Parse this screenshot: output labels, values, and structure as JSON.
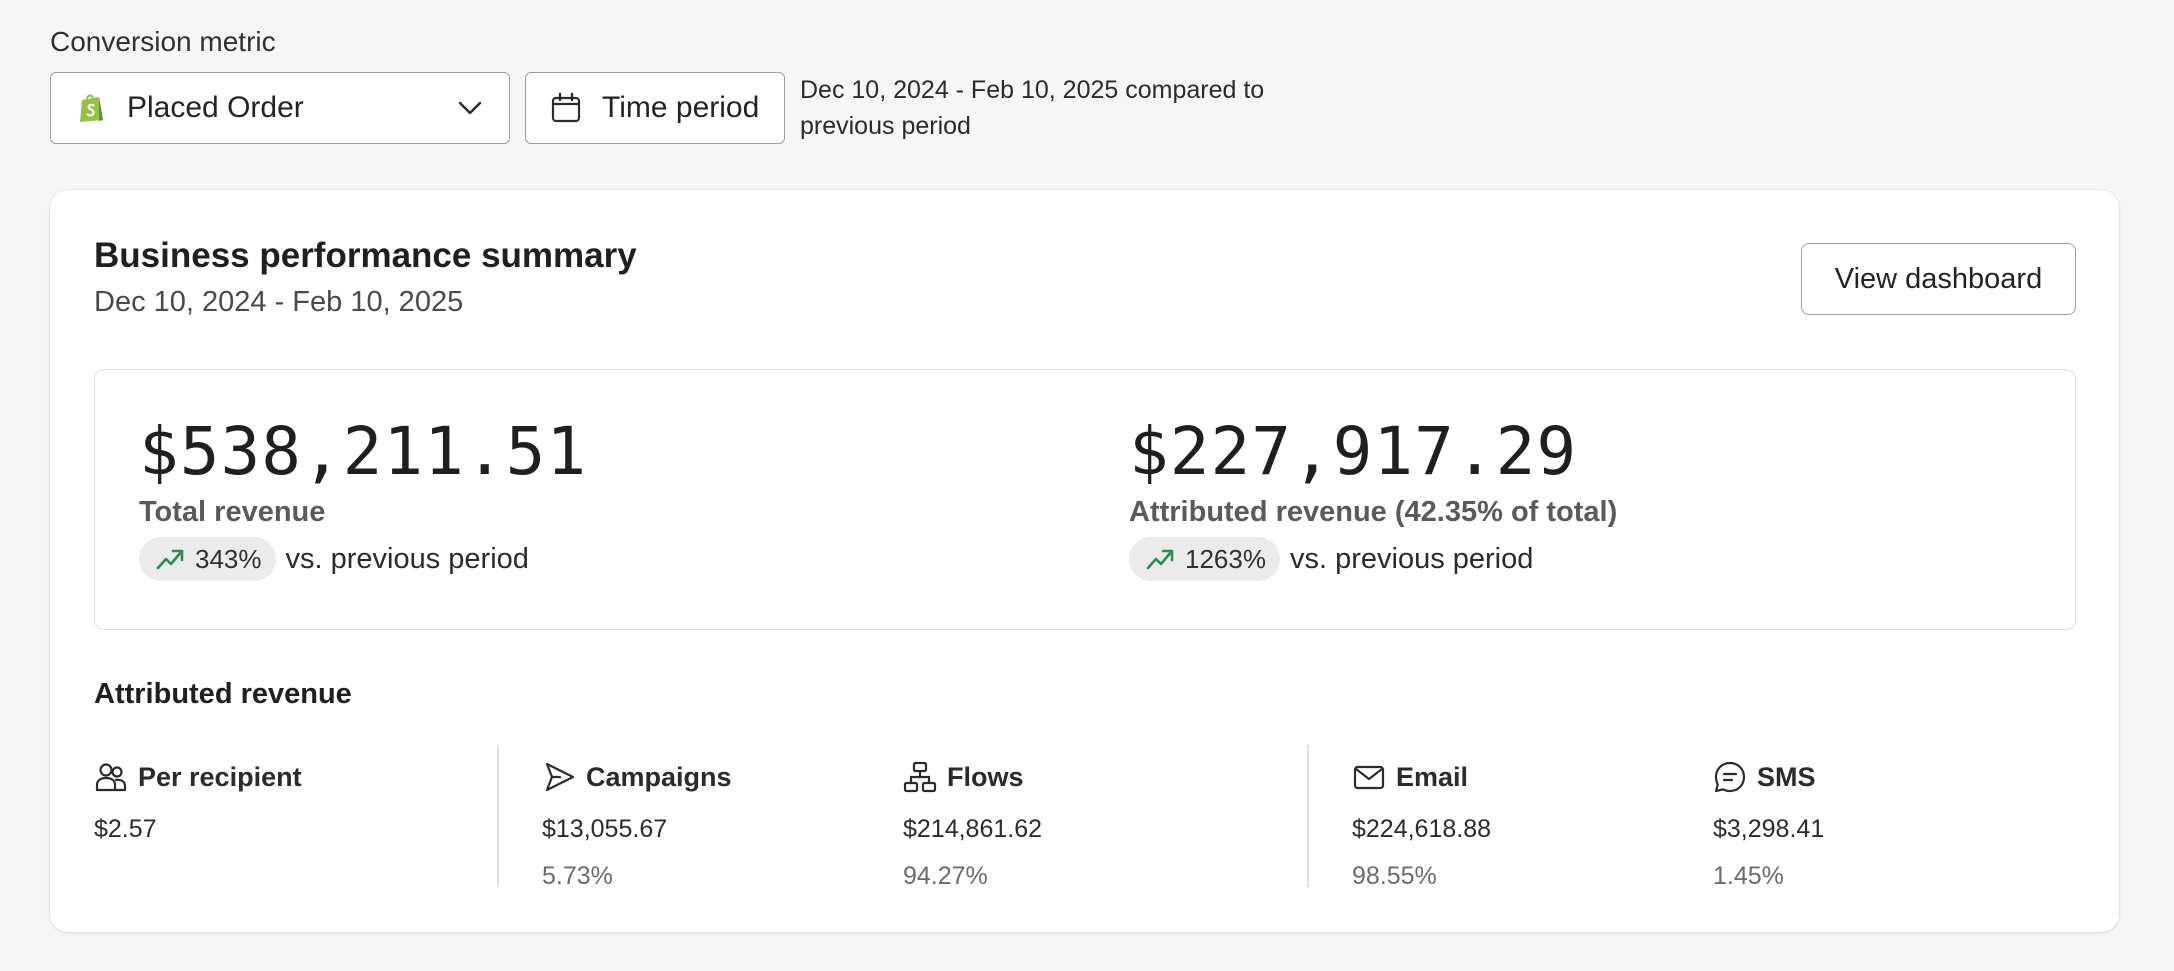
{
  "filters": {
    "metric_label": "Conversion metric",
    "metric_value": "Placed Order",
    "time_period_label": "Time period",
    "range_text": "Dec 10, 2024 - Feb 10, 2025 compared to previous period"
  },
  "card": {
    "title": "Business performance summary",
    "subtitle": "Dec 10, 2024 - Feb 10, 2025",
    "view_dashboard_label": "View dashboard"
  },
  "summary": {
    "total": {
      "value": "$538,211.51",
      "label": "Total revenue",
      "change": "343%",
      "vs": "vs. previous period"
    },
    "attributed": {
      "value": "$227,917.29",
      "label": "Attributed revenue (42.35% of total)",
      "change": "1263%",
      "vs": "vs. previous period"
    }
  },
  "attributed_revenue": {
    "title": "Attributed revenue",
    "metrics": [
      {
        "icon": "people-icon",
        "label": "Per recipient",
        "value": "$2.57",
        "percent": ""
      },
      {
        "icon": "send-icon",
        "label": "Campaigns",
        "value": "$13,055.67",
        "percent": "5.73%"
      },
      {
        "icon": "flow-icon",
        "label": "Flows",
        "value": "$214,861.62",
        "percent": "94.27%"
      },
      {
        "icon": "mail-icon",
        "label": "Email",
        "value": "$224,618.88",
        "percent": "98.55%"
      },
      {
        "icon": "chat-icon",
        "label": "SMS",
        "value": "$3,298.41",
        "percent": "1.45%"
      }
    ]
  },
  "colors": {
    "background": "#f6f6f7",
    "trend_up": "#2e8b57",
    "shopify_green": "#95bf47"
  }
}
